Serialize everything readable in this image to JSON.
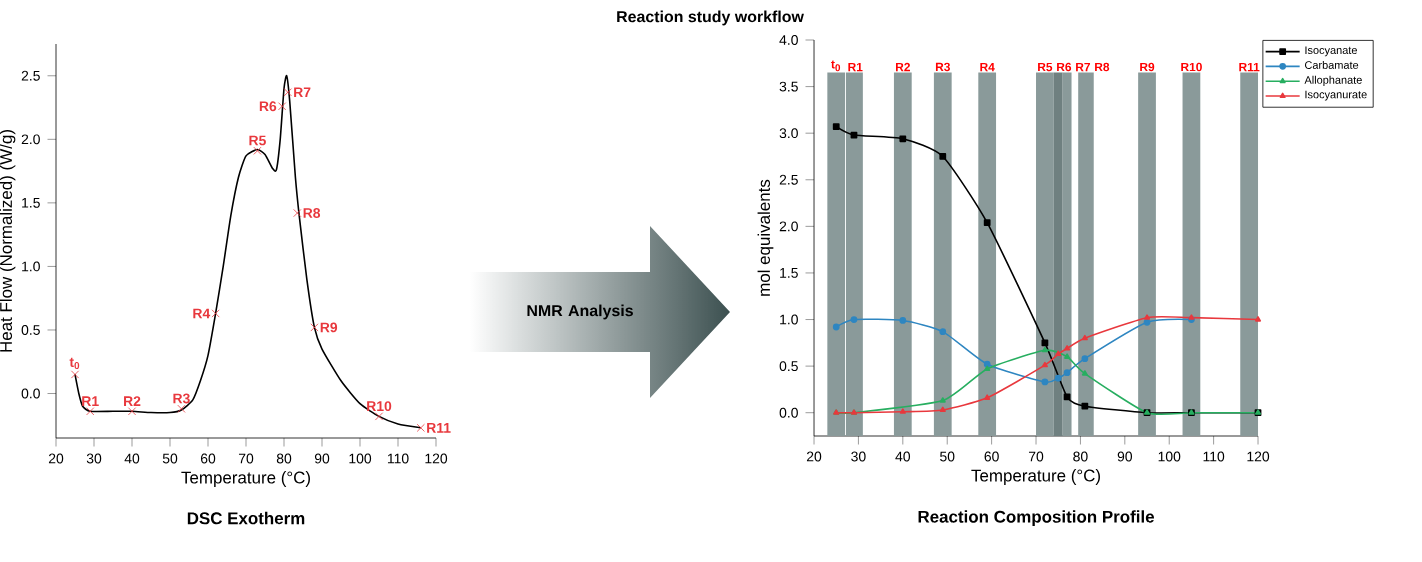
{
  "chart_data": [
    {
      "type": "line",
      "title": "DSC Exotherm",
      "xlabel": "Temperature (°C)",
      "ylabel": "Heat Flow (Normalized) (W/g)",
      "xlim": [
        20,
        120
      ],
      "xticks": [
        20,
        30,
        40,
        50,
        60,
        70,
        80,
        90,
        100,
        110,
        120
      ],
      "ylim": [
        -0.35,
        2.75
      ],
      "yticks": [
        {
          "value": 0,
          "label": "0.0"
        },
        {
          "value": 0.5,
          "label": "0.5"
        },
        {
          "value": 1,
          "label": "1.0"
        },
        {
          "value": 1.5,
          "label": "1.5"
        },
        {
          "value": 2,
          "label": "2.0"
        },
        {
          "value": 2.5,
          "label": "2.5"
        }
      ],
      "grid": false,
      "legend": false,
      "series": [
        {
          "type": "line",
          "color": "#000000",
          "marker": "none",
          "x": [
            25,
            26,
            27,
            29,
            35,
            40,
            45,
            50,
            53,
            56,
            58,
            60,
            62,
            64,
            66,
            68,
            70,
            73,
            75,
            77,
            78,
            79,
            80,
            80.7,
            81.5,
            83,
            84,
            86,
            88,
            90,
            95,
            100,
            105,
            110,
            116
          ],
          "values": [
            0.15,
            0.0,
            -0.1,
            -0.14,
            -0.14,
            -0.14,
            -0.15,
            -0.15,
            -0.13,
            -0.05,
            0.1,
            0.3,
            0.63,
            1.0,
            1.4,
            1.7,
            1.87,
            1.92,
            1.88,
            1.77,
            1.76,
            2.0,
            2.4,
            2.5,
            2.3,
            1.7,
            1.4,
            0.9,
            0.52,
            0.35,
            0.1,
            -0.08,
            -0.18,
            -0.24,
            -0.27
          ]
        },
        {
          "type": "scatter",
          "color": "#e8383d",
          "marker": "cross",
          "x": [
            25,
            29,
            40,
            53,
            62,
            73,
            79.5,
            81,
            83.5,
            88,
            105,
            116
          ],
          "values": [
            0.15,
            -0.14,
            -0.14,
            -0.12,
            0.63,
            1.91,
            2.26,
            2.37,
            1.42,
            0.52,
            -0.18,
            -0.27
          ]
        }
      ],
      "annotations": [
        {
          "text": "t$_{0}$",
          "x": 25,
          "y": 0.15
        },
        {
          "text": "R1",
          "x": 29,
          "y": -0.14
        },
        {
          "text": "R2",
          "x": 40,
          "y": -0.14
        },
        {
          "text": "R3",
          "x": 53,
          "y": -0.12
        },
        {
          "text": "R4",
          "x": 62,
          "y": 0.63
        },
        {
          "text": "R5",
          "x": 73,
          "y": 1.91
        },
        {
          "text": "R6",
          "x": 79.5,
          "y": 2.26
        },
        {
          "text": "R7",
          "x": 81,
          "y": 2.37
        },
        {
          "text": "R8",
          "x": 83.5,
          "y": 1.42
        },
        {
          "text": "R9",
          "x": 88,
          "y": 0.52
        },
        {
          "text": "R10",
          "x": 105,
          "y": -0.18
        },
        {
          "text": "R11",
          "x": 116,
          "y": -0.27
        },
        "NMR Analysis",
        "Reaction study workflow"
      ]
    },
    {
      "type": "line",
      "title": "Reaction Composition Profile",
      "xlabel": "Temperature (°C)",
      "ylabel": "mol equivalents",
      "xlim": [
        20,
        120
      ],
      "xticks": [
        20,
        30,
        40,
        50,
        60,
        70,
        80,
        90,
        100,
        110,
        120
      ],
      "ylim": [
        -0.25,
        4.0
      ],
      "yticks": [
        {
          "value": 0,
          "label": "0.0"
        },
        {
          "value": 0.5,
          "label": "0.5"
        },
        {
          "value": 1,
          "label": "1.0"
        },
        {
          "value": 1.5,
          "label": "1.5"
        },
        {
          "value": 2,
          "label": "2.0"
        },
        {
          "value": 2.5,
          "label": "2.5"
        },
        {
          "value": 3,
          "label": "3.0"
        },
        {
          "value": 3.5,
          "label": "3.5"
        },
        {
          "value": 4,
          "label": "4.0"
        }
      ],
      "grid": false,
      "legend": "top right",
      "bands": [
        {
          "axis": "x",
          "from": 23,
          "to": 27,
          "label": "t$_{0}$",
          "color": "#8a9a9a"
        },
        {
          "axis": "x",
          "from": 27.2,
          "to": 31,
          "label": "R1",
          "color": "#8a9a9a"
        },
        {
          "axis": "x",
          "from": 38,
          "to": 42,
          "label": "R2",
          "color": "#8a9a9a"
        },
        {
          "axis": "x",
          "from": 47,
          "to": 51,
          "label": "R3",
          "color": "#8a9a9a"
        },
        {
          "axis": "x",
          "from": 57,
          "to": 61,
          "label": "R4",
          "color": "#8a9a9a"
        },
        {
          "axis": "x",
          "from": 70,
          "to": 74,
          "label": "R5",
          "color": "#8a9a9a"
        },
        {
          "axis": "x",
          "from": 74,
          "to": 76,
          "label": "R6",
          "color": "#6f8080"
        },
        {
          "axis": "x",
          "from": 76,
          "to": 78,
          "label": "R7",
          "color": "#8a9a9a"
        },
        {
          "axis": "x",
          "from": 79.5,
          "to": 83,
          "label": "R8",
          "color": "#8a9a9a"
        },
        {
          "axis": "x",
          "from": 93,
          "to": 97,
          "label": "R9",
          "color": "#8a9a9a"
        },
        {
          "axis": "x",
          "from": 103,
          "to": 107,
          "label": "R10",
          "color": "#8a9a9a"
        },
        {
          "axis": "x",
          "from": 116,
          "to": 120,
          "label": "R11",
          "color": "#8a9a9a"
        }
      ],
      "series": [
        {
          "name": "Isocyanate",
          "color": "#000000",
          "marker": "square",
          "x": [
            25,
            29,
            40,
            49,
            59,
            72,
            77,
            81,
            95,
            105,
            120
          ],
          "values": [
            3.07,
            2.98,
            2.94,
            2.75,
            2.04,
            0.75,
            0.17,
            0.07,
            0.0,
            0.0,
            0.0
          ]
        },
        {
          "name": "Carbamate",
          "color": "#2e86c1",
          "marker": "circle",
          "x": [
            25,
            29,
            40,
            49,
            59,
            72,
            75,
            77,
            81,
            95,
            105
          ],
          "values": [
            0.92,
            1.0,
            0.99,
            0.87,
            0.52,
            0.33,
            0.37,
            0.43,
            0.58,
            0.97,
            1.0
          ]
        },
        {
          "name": "Allophanate",
          "color": "#27ae60",
          "marker": "triangle",
          "x": [
            25,
            29,
            49,
            59,
            72,
            77,
            81,
            95,
            105,
            120
          ],
          "values": [
            0.0,
            0.0,
            0.13,
            0.47,
            0.67,
            0.6,
            0.42,
            0.0,
            0.0,
            0.0
          ]
        },
        {
          "name": "Isocyanurate",
          "color": "#e8383d",
          "marker": "triangle",
          "x": [
            25,
            29,
            40,
            49,
            59,
            72,
            75,
            77,
            81,
            95,
            105,
            120
          ],
          "values": [
            0.0,
            0.0,
            0.01,
            0.03,
            0.16,
            0.51,
            0.63,
            0.69,
            0.8,
            1.02,
            1.02,
            1.0
          ]
        }
      ]
    }
  ]
}
